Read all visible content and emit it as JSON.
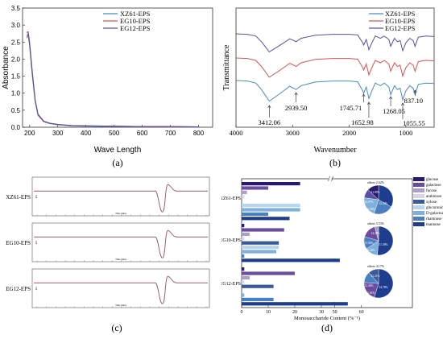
{
  "chart_data": [
    {
      "panel": "(a)",
      "type": "line",
      "xlabel": "Wave Length",
      "ylabel": "Absorbance",
      "xlim": [
        175,
        850
      ],
      "ylim": [
        0,
        3.5
      ],
      "xticks": [
        200,
        300,
        400,
        500,
        600,
        700,
        800
      ],
      "yticks": [
        0.0,
        0.5,
        1.0,
        1.5,
        2.0,
        2.5,
        3.0,
        3.5
      ],
      "legend": "top-right",
      "series": [
        {
          "name": "XZ61-EPS",
          "color": "#4a89c4",
          "x": [
            190,
            195,
            200,
            210,
            220,
            230,
            250,
            270,
            300,
            350,
            400,
            500,
            600,
            700,
            800
          ],
          "y": [
            2.62,
            2.7,
            2.4,
            1.5,
            0.75,
            0.35,
            0.16,
            0.11,
            0.07,
            0.04,
            0.03,
            0.02,
            0.02,
            0.01,
            0.01
          ]
        },
        {
          "name": "EG10-EPS",
          "color": "#d9534f",
          "x": [
            190,
            195,
            200,
            210,
            220,
            230,
            250,
            270,
            300,
            350,
            400,
            500,
            600,
            700,
            800
          ],
          "y": [
            2.68,
            2.75,
            2.45,
            1.55,
            0.78,
            0.36,
            0.17,
            0.12,
            0.08,
            0.05,
            0.04,
            0.03,
            0.02,
            0.02,
            0.01
          ]
        },
        {
          "name": "EG12-EPS",
          "color": "#5a4fa0",
          "x": [
            190,
            195,
            200,
            210,
            220,
            230,
            250,
            270,
            300,
            350,
            400,
            500,
            600,
            700,
            800
          ],
          "y": [
            2.78,
            2.8,
            2.5,
            1.6,
            0.8,
            0.38,
            0.18,
            0.12,
            0.08,
            0.05,
            0.04,
            0.03,
            0.02,
            0.02,
            0.01
          ]
        }
      ]
    },
    {
      "panel": "(b)",
      "type": "line",
      "xlabel": "Wavenumber",
      "ylabel": "Transmittance",
      "xlim": [
        4000,
        500
      ],
      "xticks": [
        4000,
        3000,
        2000,
        1000
      ],
      "legend": "top-right",
      "peaks": [
        {
          "x": 3412.06,
          "label": "3412.06"
        },
        {
          "x": 2939.5,
          "label": "2939.50"
        },
        {
          "x": 1745.71,
          "label": "1745.71"
        },
        {
          "x": 1652.98,
          "label": "1652.98"
        },
        {
          "x": 1268.05,
          "label": "1268.05"
        },
        {
          "x": 1055.55,
          "label": "1055.55"
        },
        {
          "x": 837.1,
          "label": "837.10"
        }
      ],
      "series": [
        {
          "name": "XZ61-EPS",
          "color": "#4a89c4",
          "offset": 0
        },
        {
          "name": "EG10-EPS",
          "color": "#d9534f",
          "offset": 1
        },
        {
          "name": "EG12-EPS",
          "color": "#5a4fa0",
          "offset": 2
        }
      ]
    },
    {
      "panel": "(c)",
      "type": "line",
      "subplots": [
        "XZ61-EPS",
        "EG10-EPS",
        "EG12-EPS"
      ],
      "peak_position_fraction": 0.735
    },
    {
      "panel": "(d)",
      "type": "bar",
      "xlabel": "Monosaccharide Content (%⁻¹)",
      "xticks": [
        0,
        10,
        20,
        30,
        40,
        50,
        60
      ],
      "groups": [
        "XZ61-EPS",
        "EG10-EPS",
        "EG12-EPS"
      ],
      "legend_entries": [
        {
          "name": "glucose",
          "color": "#2a1a6e"
        },
        {
          "name": "galactose",
          "color": "#6a4d9e"
        },
        {
          "name": "fucose",
          "color": "#a99fc9"
        },
        {
          "name": "arabinose",
          "color": "#d9d4ea"
        },
        {
          "name": "xylose",
          "color": "#3a5a9a"
        },
        {
          "name": "glucuronic",
          "color": "#b8d6f0"
        },
        {
          "name": "D-galacturonic",
          "color": "#7fb0dc"
        },
        {
          "name": "rhamnose",
          "color": "#4a7fc0"
        },
        {
          "name": "mannose",
          "color": "#1e3d8f"
        }
      ],
      "series": [
        {
          "group": "XZ61-EPS",
          "values": [
            22,
            10,
            2,
            1,
            0,
            22,
            22,
            10,
            33
          ]
        },
        {
          "group": "EG10-EPS",
          "values": [
            1,
            16,
            3,
            1,
            14,
            14,
            13,
            1,
            51
          ]
        },
        {
          "group": "EG12-EPS",
          "values": [
            1,
            20,
            3,
            1,
            12,
            0,
            1,
            12,
            54
          ]
        }
      ],
      "pies": [
        {
          "group": "XZ61-EPS",
          "others": "others 2.62%",
          "labels": [
            "33.24%",
            "21.85%",
            "22.07%",
            "10.04%"
          ]
        },
        {
          "group": "EG10-EPS",
          "others": "others 3.53%",
          "labels": [
            "51.38%",
            "14.29%",
            "13.84%",
            "16.24%"
          ]
        },
        {
          "group": "EG12-EPS",
          "others": "others 4.17%",
          "labels": [
            "54.78%",
            "21.21%",
            "12.44%",
            "11.63%"
          ]
        }
      ]
    }
  ],
  "panel_labels": [
    "(a)",
    "(b)",
    "(c)",
    "(d)"
  ],
  "c_xunit": "Time (min)",
  "c_yunit": "mV"
}
